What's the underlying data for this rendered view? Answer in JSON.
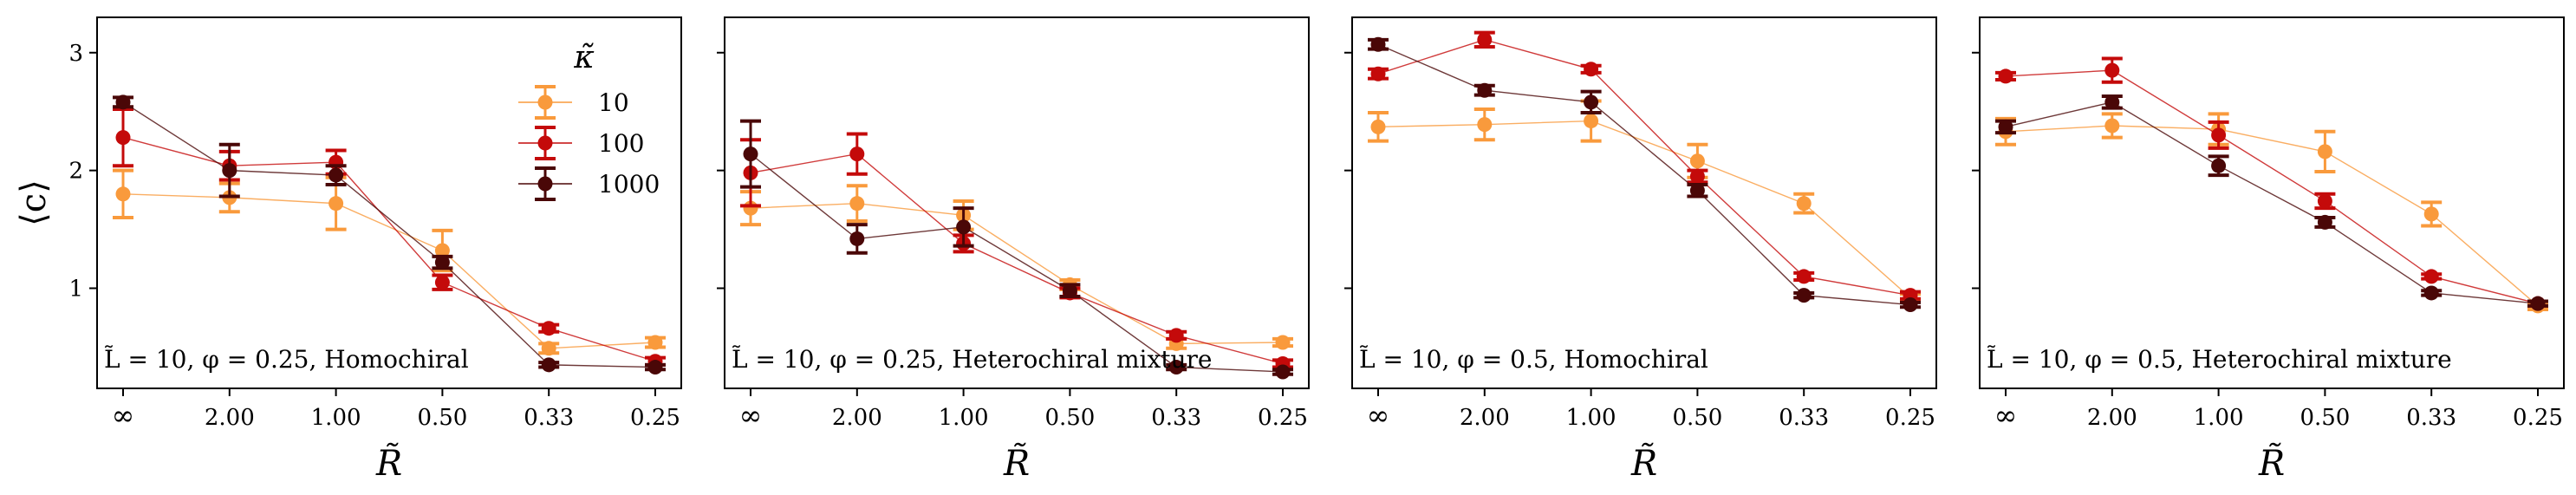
{
  "chart_data": [
    {
      "type": "line",
      "title": "",
      "annotation": "L̃ = 10, φ = 0.25, Homochiral",
      "xlabel": "R̃",
      "ylabel": "⟨c⟩",
      "categories": [
        "∞",
        "2.00",
        "1.00",
        "0.50",
        "0.33",
        "0.25"
      ],
      "ylim": [
        0.15,
        3.3
      ],
      "yticks": [
        1,
        2,
        3
      ],
      "legend": {
        "title": "κ̃",
        "position": "top-right",
        "entries": [
          "10",
          "100",
          "1000"
        ]
      },
      "series": [
        {
          "name": "10",
          "values": [
            1.8,
            1.77,
            1.72,
            1.32,
            0.49,
            0.54
          ],
          "errors": [
            0.2,
            0.12,
            0.22,
            0.17,
            0.04,
            0.04
          ]
        },
        {
          "name": "100",
          "values": [
            2.28,
            2.04,
            2.07,
            1.05,
            0.66,
            0.38
          ],
          "errors": [
            0.24,
            0.12,
            0.1,
            0.06,
            0.03,
            0.03
          ]
        },
        {
          "name": "1000",
          "values": [
            2.58,
            2.0,
            1.96,
            1.22,
            0.35,
            0.33
          ],
          "errors": [
            0.04,
            0.22,
            0.08,
            0.05,
            0.02,
            0.02
          ]
        }
      ]
    },
    {
      "type": "line",
      "title": "",
      "annotation": "L̃ = 10, φ = 0.25, Heterochiral mixture",
      "xlabel": "R̃",
      "ylabel": "",
      "categories": [
        "∞",
        "2.00",
        "1.00",
        "0.50",
        "0.33",
        "0.25"
      ],
      "ylim": [
        0.15,
        3.3
      ],
      "yticks": [
        1,
        2,
        3
      ],
      "series": [
        {
          "name": "10",
          "values": [
            1.68,
            1.72,
            1.62,
            1.03,
            0.53,
            0.54
          ],
          "errors": [
            0.14,
            0.15,
            0.12,
            0.04,
            0.04,
            0.03
          ]
        },
        {
          "name": "100",
          "values": [
            1.98,
            2.14,
            1.38,
            0.96,
            0.6,
            0.36
          ],
          "errors": [
            0.28,
            0.17,
            0.07,
            0.04,
            0.03,
            0.03
          ]
        },
        {
          "name": "1000",
          "values": [
            2.14,
            1.42,
            1.52,
            0.98,
            0.33,
            0.29
          ],
          "errors": [
            0.28,
            0.12,
            0.16,
            0.05,
            0.02,
            0.02
          ]
        }
      ]
    },
    {
      "type": "line",
      "title": "",
      "annotation": "L̃ = 10, φ = 0.5, Homochiral",
      "xlabel": "R̃",
      "ylabel": "",
      "categories": [
        "∞",
        "2.00",
        "1.00",
        "0.50",
        "0.33",
        "0.25"
      ],
      "ylim": [
        0.15,
        3.3
      ],
      "yticks": [
        1,
        2,
        3
      ],
      "series": [
        {
          "name": "10",
          "values": [
            2.37,
            2.39,
            2.42,
            2.08,
            1.72,
            0.92
          ],
          "errors": [
            0.12,
            0.13,
            0.17,
            0.14,
            0.08,
            0.03
          ]
        },
        {
          "name": "100",
          "values": [
            2.82,
            3.11,
            2.86,
            1.95,
            1.1,
            0.94
          ],
          "errors": [
            0.04,
            0.06,
            0.03,
            0.05,
            0.03,
            0.03
          ]
        },
        {
          "name": "1000",
          "values": [
            3.07,
            2.68,
            2.58,
            1.83,
            0.94,
            0.86
          ],
          "errors": [
            0.04,
            0.04,
            0.09,
            0.05,
            0.02,
            0.02
          ]
        }
      ]
    },
    {
      "type": "line",
      "title": "",
      "annotation": "L̃ = 10, φ = 0.5, Heterochiral mixture",
      "xlabel": "R̃",
      "ylabel": "",
      "categories": [
        "∞",
        "2.00",
        "1.00",
        "0.50",
        "0.33",
        "0.25"
      ],
      "ylim": [
        0.15,
        3.3
      ],
      "yticks": [
        1,
        2,
        3
      ],
      "series": [
        {
          "name": "10",
          "values": [
            2.33,
            2.38,
            2.35,
            2.16,
            1.63,
            0.85
          ],
          "errors": [
            0.11,
            0.1,
            0.13,
            0.17,
            0.1,
            0.03
          ]
        },
        {
          "name": "100",
          "values": [
            2.8,
            2.85,
            2.3,
            1.74,
            1.1,
            0.87
          ],
          "errors": [
            0.03,
            0.1,
            0.11,
            0.06,
            0.02,
            0.02
          ]
        },
        {
          "name": "1000",
          "values": [
            2.37,
            2.58,
            2.04,
            1.56,
            0.96,
            0.87
          ],
          "errors": [
            0.05,
            0.05,
            0.08,
            0.04,
            0.02,
            0.02
          ]
        }
      ]
    }
  ],
  "colors": {
    "10": "#f99a3c",
    "100": "#c40a0a",
    "1000": "#4a0707"
  }
}
